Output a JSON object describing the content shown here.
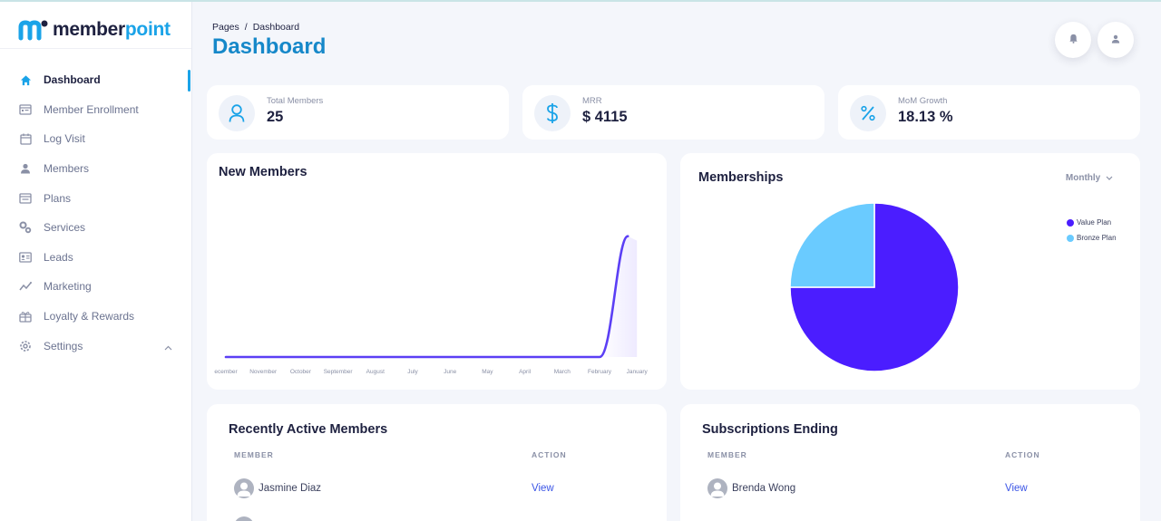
{
  "brand": {
    "name_part1": "member",
    "name_part2": "point",
    "accent": "#1aa3e8"
  },
  "sidebar": {
    "items": [
      {
        "label": "Dashboard",
        "icon": "home-icon",
        "active": true
      },
      {
        "label": "Member Enrollment",
        "icon": "enrollment-icon"
      },
      {
        "label": "Log Visit",
        "icon": "calendar-icon"
      },
      {
        "label": "Members",
        "icon": "person-icon"
      },
      {
        "label": "Plans",
        "icon": "plans-icon"
      },
      {
        "label": "Services",
        "icon": "gears-icon"
      },
      {
        "label": "Leads",
        "icon": "id-card-icon"
      },
      {
        "label": "Marketing",
        "icon": "trend-icon"
      },
      {
        "label": "Loyalty & Rewards",
        "icon": "gift-icon"
      },
      {
        "label": "Settings",
        "icon": "settings-icon"
      }
    ]
  },
  "header": {
    "breadcrumb_root": "Pages",
    "breadcrumb_sep": "/",
    "breadcrumb_current": "Dashboard",
    "title": "Dashboard"
  },
  "stats": [
    {
      "label": "Total Members",
      "value": "25",
      "icon": "user-icon"
    },
    {
      "label": "MRR",
      "value": "$ 4115",
      "icon": "dollar-icon"
    },
    {
      "label": "MoM Growth",
      "value": "18.13 %",
      "icon": "percent-icon"
    }
  ],
  "new_members": {
    "title": "New Members"
  },
  "memberships": {
    "title": "Memberships",
    "period": "Monthly"
  },
  "chart_data": [
    {
      "type": "line",
      "categories": [
        "December",
        "November",
        "October",
        "September",
        "August",
        "July",
        "June",
        "May",
        "April",
        "March",
        "February",
        "January"
      ],
      "tick_labels": [
        "ecember",
        "November",
        "October",
        "September",
        "August",
        "July",
        "June",
        "May",
        "April",
        "March",
        "February",
        "January"
      ],
      "values": [
        0,
        0,
        0,
        0,
        0,
        0,
        0,
        0,
        0,
        0,
        0,
        25
      ],
      "ylim": [
        0,
        27
      ],
      "grid": false,
      "color": "#5b3ff5"
    },
    {
      "type": "pie",
      "labels": [
        "Value Plan",
        "Bronze Plan"
      ],
      "values": [
        75,
        25
      ],
      "colors": [
        "#4b1dff",
        "#6acbff"
      ],
      "legend": "top-right"
    }
  ],
  "recent": {
    "title": "Recently Active Members",
    "col_member": "MEMBER",
    "col_action": "ACTION",
    "rows": [
      {
        "name": "Jasmine Diaz",
        "action": "View"
      }
    ]
  },
  "ending": {
    "title": "Subscriptions Ending",
    "col_member": "MEMBER",
    "col_action": "ACTION",
    "rows": [
      {
        "name": "Brenda Wong",
        "action": "View"
      }
    ]
  }
}
